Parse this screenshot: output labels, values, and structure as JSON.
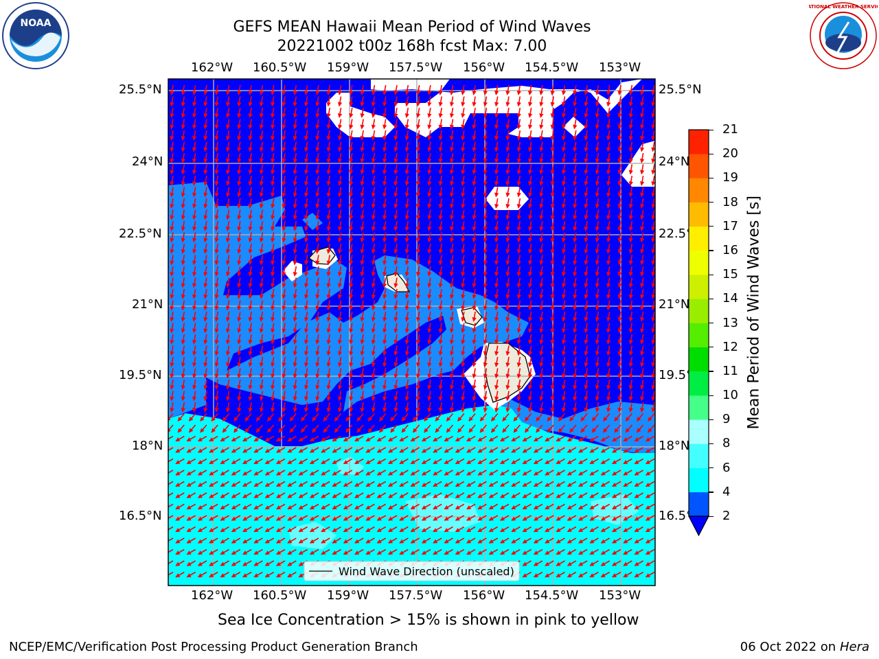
{
  "title": {
    "line1": "GEFS MEAN Hawaii Mean Period of Wind Waves",
    "line2": "20221002 t00z 168h fcst   Max: 7.00"
  },
  "logos": {
    "left_text": "NOAA",
    "right_text": "NATIONAL WEATHER SERVICE"
  },
  "map": {
    "lon_labels": [
      "162°W",
      "160.5°W",
      "159°W",
      "157.5°W",
      "156°W",
      "154.5°W",
      "153°W"
    ],
    "lat_labels": [
      "25.5°N",
      "24°N",
      "22.5°N",
      "21°N",
      "19.5°N",
      "18°N",
      "16.5°N"
    ],
    "legend_label": "Wind Wave Direction (unscaled)",
    "colors": {
      "band_2_4": "#0000ff",
      "band_4_6": "#1a8cff",
      "band_6_8": "#00ffff",
      "land": "#efebdc",
      "arrows": "#ff0000",
      "grid": "#b0b0b0"
    }
  },
  "colorbar": {
    "label": "Mean Period of Wind Waves [s]",
    "ticks": [
      "2",
      "4",
      "6",
      "8",
      "9",
      "10",
      "11",
      "12",
      "13",
      "14",
      "15",
      "16",
      "17",
      "18",
      "19",
      "20",
      "21"
    ],
    "colors": [
      "#0055ff",
      "#00ffff",
      "#44ffff",
      "#aaffff",
      "#44ff88",
      "#00ee44",
      "#00dd00",
      "#55ee00",
      "#99ee00",
      "#ccf000",
      "#eeff00",
      "#ffee00",
      "#ffbb00",
      "#ff8800",
      "#ff5500",
      "#ff2200"
    ],
    "extend_color": "#0000ff"
  },
  "subnote": "Sea Ice Concentration > 15% is shown in pink to yellow",
  "footer": {
    "left": "NCEP/EMC/Verification Post Processing Product Generation Branch",
    "date": "06 Oct 2022 on ",
    "machine": "Hera"
  }
}
